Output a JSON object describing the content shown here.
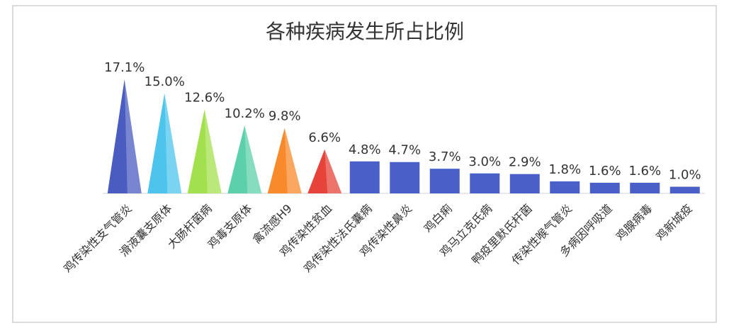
{
  "chart_data": {
    "type": "bar",
    "title": "各种疾病发生所占比例",
    "categories": [
      "鸡传染性支气管炎",
      "滑液囊支原体",
      "大肠杆菌病",
      "鸡毒支原体",
      "禽流感H9",
      "鸡传染性贫血",
      "鸡传染性法氏囊病",
      "鸡传染性鼻炎",
      "鸡白痢",
      "鸡马立克氏病",
      "鸭疫里默氏杆菌",
      "传染性喉气管炎",
      "多病因呼吸道",
      "鸡腺病毒",
      "鸡新城疫"
    ],
    "values": [
      17.1,
      15.0,
      12.6,
      10.2,
      9.8,
      6.6,
      4.8,
      4.7,
      3.7,
      3.0,
      2.9,
      1.8,
      1.6,
      1.6,
      1.0
    ],
    "value_labels": [
      "17.1%",
      "15.0%",
      "12.6%",
      "10.2%",
      "9.8%",
      "6.6%",
      "4.8%",
      "4.7%",
      "3.7%",
      "3.0%",
      "2.9%",
      "1.8%",
      "1.6%",
      "1.6%",
      "1.0%"
    ],
    "colors": [
      "#4b5cc0",
      "#4cc4ec",
      "#a3e04e",
      "#5cd0aa",
      "#f98a2c",
      "#e6443a",
      "#4a5fc8",
      "#4a5fc8",
      "#4a5fc8",
      "#4a5fc8",
      "#4a5fc8",
      "#4a5fc8",
      "#4a5fc8",
      "#4a5fc8",
      "#4a5fc8"
    ],
    "shapes": [
      "triangle",
      "triangle",
      "triangle",
      "triangle",
      "triangle",
      "triangle",
      "rect",
      "rect",
      "rect",
      "rect",
      "rect",
      "rect",
      "rect",
      "rect",
      "rect"
    ]
  }
}
